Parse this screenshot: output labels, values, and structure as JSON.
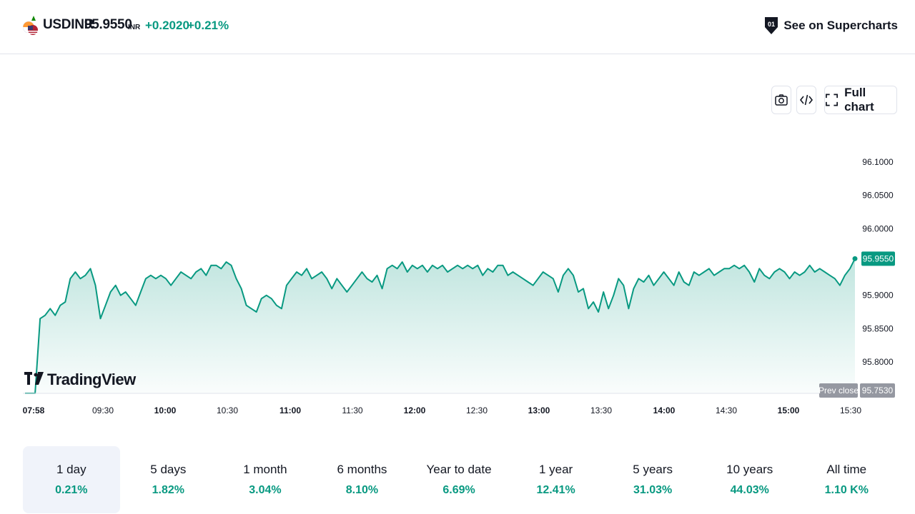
{
  "header": {
    "symbol": "USDINR",
    "price": "95.9550",
    "currency": "INR",
    "change": "+0.2020",
    "change_pct": "+0.21%",
    "superchart_label": "See on Supercharts"
  },
  "toolbar": {
    "snapshot_icon": "camera-icon",
    "embed_icon": "code-embed-icon",
    "full_chart_label": "Full chart"
  },
  "brand": {
    "logo_text": "TradingView"
  },
  "colors": {
    "accent": "#089981",
    "prev_close_bg": "#9598a1",
    "text": "#131722"
  },
  "chart_data": {
    "type": "area",
    "x_ticks": [
      {
        "label": "07:58",
        "bold": true
      },
      {
        "label": "09:30",
        "bold": false
      },
      {
        "label": "10:00",
        "bold": true
      },
      {
        "label": "10:30",
        "bold": false
      },
      {
        "label": "11:00",
        "bold": true
      },
      {
        "label": "11:30",
        "bold": false
      },
      {
        "label": "12:00",
        "bold": true
      },
      {
        "label": "12:30",
        "bold": false
      },
      {
        "label": "13:00",
        "bold": true
      },
      {
        "label": "13:30",
        "bold": false
      },
      {
        "label": "14:00",
        "bold": true
      },
      {
        "label": "14:30",
        "bold": false
      },
      {
        "label": "15:00",
        "bold": true
      },
      {
        "label": "15:30",
        "bold": false
      }
    ],
    "y_ticks": [
      "96.1000",
      "96.0500",
      "96.0000",
      "95.9000",
      "95.8500",
      "95.8000"
    ],
    "y_tick_values": [
      96.1,
      96.05,
      96.0,
      95.9,
      95.85,
      95.8
    ],
    "last_price": "95.9550",
    "last_value": 95.955,
    "prev_close_label": "Prev close",
    "prev_close": "95.7530",
    "prev_close_value": 95.753,
    "series": [
      {
        "values": [
          95.753,
          95.753,
          95.753,
          95.865,
          95.87,
          95.88,
          95.87,
          95.885,
          95.89,
          95.925,
          95.935,
          95.925,
          95.93,
          95.94,
          95.915,
          95.865,
          95.885,
          95.905,
          95.915,
          95.9,
          95.905,
          95.895,
          95.885,
          95.905,
          95.925,
          95.93,
          95.925,
          95.93,
          95.925,
          95.915,
          95.925,
          95.935,
          95.93,
          95.925,
          95.935,
          95.94,
          95.93,
          95.945,
          95.945,
          95.94,
          95.95,
          95.945,
          95.925,
          95.91,
          95.885,
          95.88,
          95.875,
          95.895,
          95.9,
          95.895,
          95.885,
          95.88,
          95.915,
          95.925,
          95.935,
          95.93,
          95.94,
          95.925,
          95.93,
          95.935,
          95.925,
          95.91,
          95.925,
          95.915,
          95.905,
          95.915,
          95.925,
          95.935,
          95.925,
          95.92,
          95.93,
          95.91,
          95.94,
          95.945,
          95.94,
          95.95,
          95.935,
          95.945,
          95.94,
          95.945,
          95.935,
          95.945,
          95.94,
          95.945,
          95.935,
          95.94,
          95.945,
          95.94,
          95.945,
          95.94,
          95.945,
          95.93,
          95.94,
          95.935,
          95.945,
          95.945,
          95.93,
          95.935,
          95.93,
          95.925,
          95.92,
          95.915,
          95.925,
          95.935,
          95.93,
          95.925,
          95.905,
          95.93,
          95.94,
          95.93,
          95.905,
          95.91,
          95.88,
          95.89,
          95.875,
          95.905,
          95.88,
          95.9,
          95.925,
          95.915,
          95.88,
          95.91,
          95.925,
          95.92,
          95.93,
          95.915,
          95.925,
          95.935,
          95.925,
          95.915,
          95.935,
          95.92,
          95.915,
          95.935,
          95.93,
          95.935,
          95.94,
          95.93,
          95.935,
          95.94,
          95.94,
          95.945,
          95.94,
          95.945,
          95.935,
          95.92,
          95.94,
          95.93,
          95.925,
          95.935,
          95.94,
          95.935,
          95.925,
          95.935,
          95.93,
          95.935,
          95.945,
          95.935,
          95.94,
          95.935,
          95.93,
          95.925,
          95.915,
          95.93,
          95.94,
          95.955
        ]
      }
    ]
  },
  "periods": [
    {
      "label": "1 day",
      "value": "0.21%"
    },
    {
      "label": "5 days",
      "value": "1.82%"
    },
    {
      "label": "1 month",
      "value": "3.04%"
    },
    {
      "label": "6 months",
      "value": "8.10%"
    },
    {
      "label": "Year to date",
      "value": "6.69%"
    },
    {
      "label": "1 year",
      "value": "12.41%"
    },
    {
      "label": "5 years",
      "value": "31.03%"
    },
    {
      "label": "10 years",
      "value": "44.03%"
    },
    {
      "label": "All time",
      "value": "1.10 K%"
    }
  ]
}
